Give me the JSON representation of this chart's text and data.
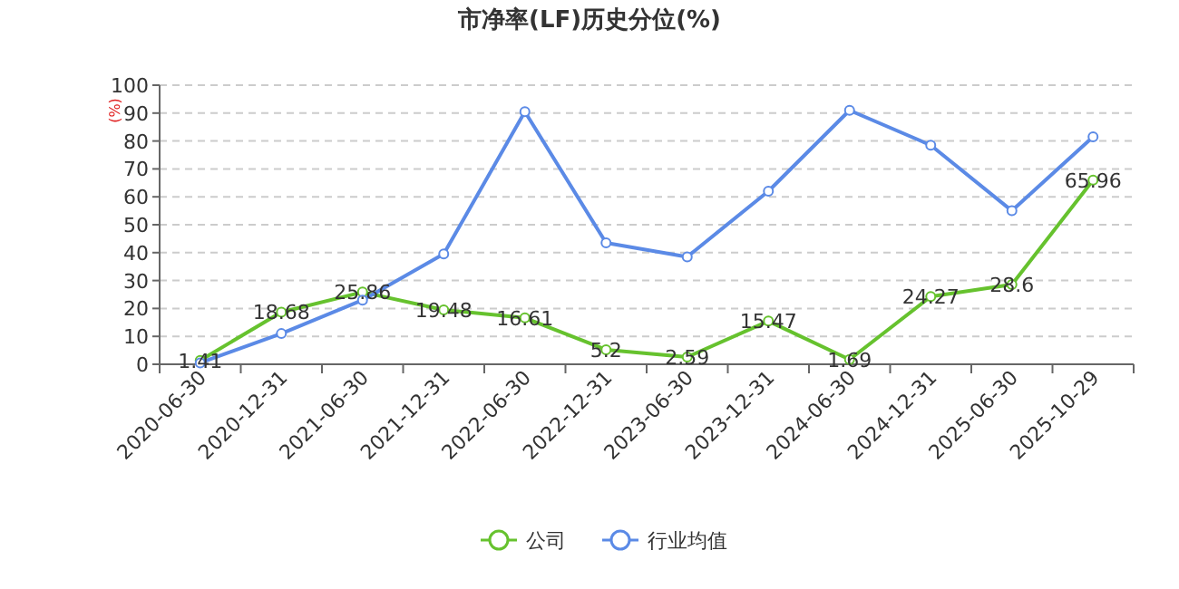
{
  "chart_data": {
    "type": "line",
    "title": "市净率(LF)历史分位(%)",
    "ylabel": "(%)",
    "categories": [
      "2020-06-30",
      "2020-12-31",
      "2021-06-30",
      "2021-12-31",
      "2022-06-30",
      "2022-12-31",
      "2023-06-30",
      "2023-12-31",
      "2024-06-30",
      "2024-12-31",
      "2025-06-30",
      "2025-10-29"
    ],
    "series": [
      {
        "name": "公司",
        "color": "#66c22e",
        "values": [
          1.41,
          18.68,
          25.86,
          19.48,
          16.61,
          5.2,
          2.59,
          15.47,
          1.69,
          24.27,
          28.6,
          65.96
        ],
        "data_labels": true
      },
      {
        "name": "行业均值",
        "color": "#5b8ae6",
        "values": [
          0.5,
          11,
          23,
          39.5,
          90.5,
          43.5,
          38.5,
          62,
          91,
          78.5,
          55,
          81.5
        ]
      }
    ],
    "ylim": [
      0,
      100
    ],
    "yticks": [
      0,
      10,
      20,
      30,
      40,
      50,
      60,
      70,
      80,
      90,
      100
    ],
    "grid": "y",
    "legend": "bottom",
    "marker": "circle",
    "line_style": "solid"
  }
}
